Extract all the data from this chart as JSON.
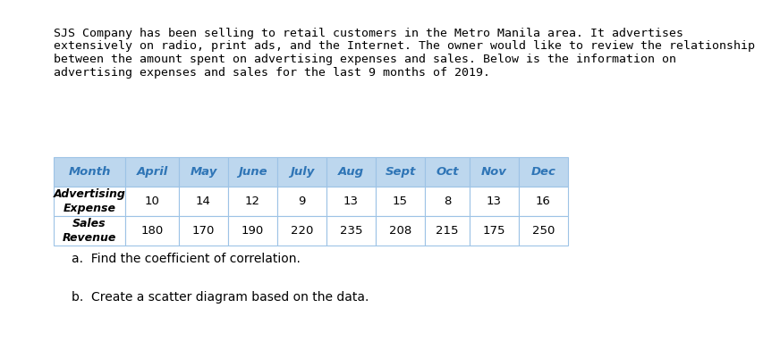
{
  "paragraph": "SJS Company has been selling to retail customers in the Metro Manila area. It advertises extensively on radio, print ads, and the Internet. The owner would like to review the relationship between the amount spent on advertising expenses and sales. Below is the information on advertising expenses and sales for the last 9 months of 2019.",
  "table": {
    "col_headers": [
      "Month",
      "April",
      "May",
      "June",
      "July",
      "Aug",
      "Sept",
      "Oct",
      "Nov",
      "Dec"
    ],
    "row1_label": "Advertising\nExpense",
    "row1_values": [
      10,
      14,
      12,
      9,
      13,
      15,
      8,
      13,
      16
    ],
    "row2_label": "Sales\nRevenue",
    "row2_values": [
      180,
      170,
      190,
      220,
      235,
      208,
      215,
      175,
      250
    ],
    "header_bg": "#BDD7EE",
    "header_text_color": "#2F75B6",
    "row_bg": "#FFFFFF",
    "border_color": "#9DC3E6",
    "header_font_style": "italic bold",
    "data_font_style": "normal"
  },
  "question_a": "a.  Find the coefficient of correlation.",
  "question_b": "b.  Create a scatter diagram based on the data.",
  "bg_color": "#FFFFFF",
  "text_color": "#000000",
  "para_fontsize": 9.5,
  "question_fontsize": 10
}
